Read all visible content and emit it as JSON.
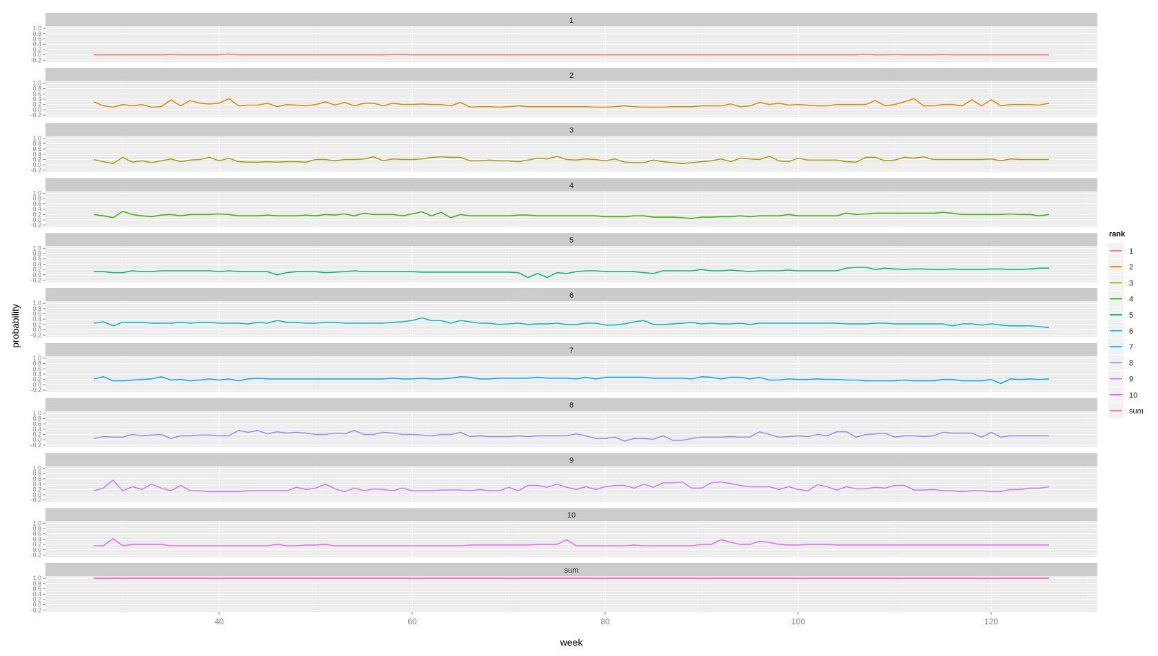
{
  "chart_data": {
    "type": "line",
    "layout": "faceted small multiples (one row per rank)",
    "xlabel": "week",
    "ylabel": "probability",
    "x_ticks": [
      40,
      60,
      80,
      100,
      120
    ],
    "xlim": [
      22,
      131
    ],
    "y_ticks": [
      "-0.2",
      "0.0",
      "0.2",
      "0.4",
      "0.6",
      "0.8",
      "1.0"
    ],
    "ylim": [
      -0.27,
      1.08
    ],
    "grid": true,
    "legend": {
      "title": "rank",
      "placement": "right",
      "entries": [
        "1",
        "2",
        "3",
        "4",
        "5",
        "6",
        "7",
        "8",
        "9",
        "10",
        "sum"
      ]
    },
    "x_start": 27,
    "x_end": 126,
    "series": [
      {
        "name": "1",
        "color": "#F8766D",
        "values": [
          0.0,
          0.0,
          0.0,
          0.0,
          0.0,
          0.0,
          0.0,
          0.0,
          0.01,
          0.0,
          0.0,
          0.0,
          0.0,
          0.0,
          0.03,
          0.0,
          0.0,
          0.0,
          0.0,
          0.0,
          0.0,
          0.0,
          0.0,
          0.0,
          0.0,
          0.0,
          0.0,
          0.0,
          0.0,
          0.0,
          0.0,
          0.01,
          0.01,
          0.0,
          0.0,
          0.0,
          0.0,
          0.0,
          0.0,
          0.0,
          0.0,
          0.0,
          0.0,
          0.0,
          0.0,
          0.0,
          0.0,
          0.0,
          0.0,
          0.0,
          0.0,
          0.0,
          0.0,
          0.0,
          0.0,
          0.0,
          0.0,
          0.0,
          0.0,
          0.0,
          0.0,
          0.0,
          0.0,
          0.0,
          0.0,
          0.0,
          0.0,
          0.0,
          0.0,
          0.0,
          0.0,
          0.0,
          0.0,
          0.0,
          0.0,
          0.0,
          0.0,
          0.0,
          0.0,
          0.0,
          0.02,
          0.0,
          0.0,
          0.01,
          0.0,
          0.0,
          0.0,
          0.0,
          0.01,
          0.0,
          0.0,
          0.0,
          0.0,
          0.0,
          0.0,
          0.0,
          0.0,
          0.0,
          0.0,
          0.0
        ]
      },
      {
        "name": "2",
        "color": "#D89000",
        "values": [
          0.3,
          0.15,
          0.1,
          0.2,
          0.15,
          0.2,
          0.1,
          0.12,
          0.38,
          0.15,
          0.35,
          0.25,
          0.22,
          0.25,
          0.42,
          0.15,
          0.18,
          0.18,
          0.25,
          0.12,
          0.2,
          0.18,
          0.15,
          0.2,
          0.3,
          0.18,
          0.28,
          0.15,
          0.25,
          0.25,
          0.15,
          0.25,
          0.2,
          0.2,
          0.22,
          0.2,
          0.2,
          0.15,
          0.28,
          0.1,
          0.12,
          0.12,
          0.1,
          0.12,
          0.15,
          0.12,
          0.12,
          0.12,
          0.12,
          0.12,
          0.12,
          0.12,
          0.1,
          0.1,
          0.12,
          0.15,
          0.12,
          0.1,
          0.1,
          0.1,
          0.12,
          0.12,
          0.12,
          0.15,
          0.15,
          0.15,
          0.22,
          0.12,
          0.15,
          0.28,
          0.2,
          0.25,
          0.18,
          0.2,
          0.18,
          0.15,
          0.15,
          0.2,
          0.2,
          0.2,
          0.2,
          0.35,
          0.15,
          0.2,
          0.3,
          0.42,
          0.15,
          0.15,
          0.2,
          0.2,
          0.15,
          0.38,
          0.15,
          0.38,
          0.15,
          0.2,
          0.2,
          0.2,
          0.18,
          0.25
        ]
      },
      {
        "name": "3",
        "color": "#A3A500",
        "values": [
          0.2,
          0.12,
          0.05,
          0.28,
          0.1,
          0.15,
          0.08,
          0.15,
          0.22,
          0.12,
          0.18,
          0.2,
          0.28,
          0.15,
          0.25,
          0.12,
          0.1,
          0.1,
          0.12,
          0.1,
          0.12,
          0.12,
          0.1,
          0.2,
          0.2,
          0.15,
          0.2,
          0.2,
          0.22,
          0.3,
          0.15,
          0.22,
          0.2,
          0.2,
          0.22,
          0.28,
          0.3,
          0.28,
          0.28,
          0.15,
          0.15,
          0.18,
          0.15,
          0.15,
          0.12,
          0.18,
          0.25,
          0.22,
          0.32,
          0.2,
          0.18,
          0.22,
          0.2,
          0.15,
          0.22,
          0.1,
          0.08,
          0.08,
          0.18,
          0.12,
          0.08,
          0.05,
          0.08,
          0.12,
          0.15,
          0.22,
          0.12,
          0.25,
          0.22,
          0.2,
          0.32,
          0.15,
          0.12,
          0.25,
          0.18,
          0.18,
          0.18,
          0.18,
          0.12,
          0.1,
          0.28,
          0.28,
          0.15,
          0.18,
          0.28,
          0.25,
          0.3,
          0.2,
          0.2,
          0.2,
          0.2,
          0.2,
          0.2,
          0.22,
          0.15,
          0.22,
          0.2,
          0.2,
          0.2,
          0.2
        ]
      },
      {
        "name": "4",
        "color": "#39B600",
        "values": [
          0.2,
          0.15,
          0.08,
          0.32,
          0.2,
          0.15,
          0.12,
          0.18,
          0.2,
          0.15,
          0.2,
          0.2,
          0.2,
          0.22,
          0.2,
          0.15,
          0.15,
          0.15,
          0.18,
          0.15,
          0.15,
          0.15,
          0.18,
          0.15,
          0.2,
          0.18,
          0.22,
          0.15,
          0.25,
          0.2,
          0.2,
          0.2,
          0.15,
          0.22,
          0.3,
          0.15,
          0.28,
          0.08,
          0.2,
          0.15,
          0.15,
          0.15,
          0.15,
          0.15,
          0.18,
          0.18,
          0.15,
          0.15,
          0.15,
          0.15,
          0.15,
          0.15,
          0.15,
          0.12,
          0.12,
          0.12,
          0.15,
          0.15,
          0.1,
          0.1,
          0.1,
          0.08,
          0.05,
          0.1,
          0.1,
          0.12,
          0.12,
          0.15,
          0.12,
          0.15,
          0.15,
          0.15,
          0.2,
          0.15,
          0.15,
          0.15,
          0.15,
          0.15,
          0.25,
          0.2,
          0.22,
          0.25,
          0.25,
          0.25,
          0.25,
          0.25,
          0.25,
          0.25,
          0.28,
          0.25,
          0.2,
          0.2,
          0.2,
          0.2,
          0.2,
          0.22,
          0.2,
          0.2,
          0.15,
          0.2
        ]
      },
      {
        "name": "5",
        "color": "#00BF7D",
        "values": [
          0.12,
          0.12,
          0.08,
          0.08,
          0.15,
          0.12,
          0.12,
          0.15,
          0.15,
          0.15,
          0.15,
          0.15,
          0.15,
          0.12,
          0.15,
          0.12,
          0.12,
          0.12,
          0.12,
          0.0,
          0.08,
          0.12,
          0.12,
          0.12,
          0.08,
          0.1,
          0.12,
          0.15,
          0.12,
          0.12,
          0.12,
          0.12,
          0.12,
          0.12,
          0.1,
          0.1,
          0.1,
          0.1,
          0.1,
          0.1,
          0.1,
          0.1,
          0.1,
          0.1,
          0.08,
          -0.1,
          0.05,
          -0.1,
          0.08,
          0.05,
          0.12,
          0.15,
          0.15,
          0.12,
          0.12,
          0.12,
          0.12,
          0.08,
          0.05,
          0.15,
          0.15,
          0.15,
          0.15,
          0.2,
          0.15,
          0.15,
          0.18,
          0.15,
          0.12,
          0.15,
          0.15,
          0.15,
          0.18,
          0.15,
          0.15,
          0.15,
          0.15,
          0.15,
          0.25,
          0.28,
          0.28,
          0.2,
          0.25,
          0.22,
          0.2,
          0.22,
          0.22,
          0.2,
          0.2,
          0.22,
          0.2,
          0.2,
          0.2,
          0.22,
          0.22,
          0.2,
          0.2,
          0.22,
          0.25,
          0.25
        ]
      },
      {
        "name": "6",
        "color": "#00BFC4",
        "values": [
          0.25,
          0.3,
          0.15,
          0.28,
          0.28,
          0.28,
          0.25,
          0.25,
          0.25,
          0.28,
          0.25,
          0.28,
          0.28,
          0.25,
          0.25,
          0.25,
          0.22,
          0.28,
          0.25,
          0.35,
          0.28,
          0.28,
          0.25,
          0.25,
          0.28,
          0.28,
          0.25,
          0.25,
          0.25,
          0.25,
          0.25,
          0.28,
          0.3,
          0.35,
          0.45,
          0.35,
          0.35,
          0.25,
          0.35,
          0.3,
          0.25,
          0.25,
          0.2,
          0.22,
          0.25,
          0.2,
          0.22,
          0.22,
          0.25,
          0.2,
          0.2,
          0.25,
          0.25,
          0.18,
          0.18,
          0.22,
          0.3,
          0.35,
          0.2,
          0.2,
          0.22,
          0.25,
          0.28,
          0.22,
          0.25,
          0.22,
          0.22,
          0.25,
          0.2,
          0.25,
          0.25,
          0.25,
          0.25,
          0.25,
          0.25,
          0.25,
          0.25,
          0.25,
          0.22,
          0.22,
          0.22,
          0.25,
          0.25,
          0.22,
          0.22,
          0.22,
          0.22,
          0.22,
          0.22,
          0.15,
          0.22,
          0.22,
          0.18,
          0.22,
          0.18,
          0.15,
          0.15,
          0.15,
          0.12,
          0.08
        ]
      },
      {
        "name": "7",
        "color": "#00B0F6",
        "values": [
          0.22,
          0.3,
          0.15,
          0.15,
          0.18,
          0.2,
          0.22,
          0.3,
          0.18,
          0.2,
          0.15,
          0.18,
          0.22,
          0.18,
          0.22,
          0.15,
          0.22,
          0.25,
          0.22,
          0.22,
          0.22,
          0.22,
          0.22,
          0.22,
          0.22,
          0.22,
          0.22,
          0.22,
          0.22,
          0.22,
          0.22,
          0.25,
          0.22,
          0.22,
          0.25,
          0.22,
          0.22,
          0.25,
          0.3,
          0.28,
          0.22,
          0.22,
          0.25,
          0.25,
          0.25,
          0.25,
          0.28,
          0.25,
          0.25,
          0.25,
          0.22,
          0.28,
          0.22,
          0.28,
          0.28,
          0.28,
          0.28,
          0.28,
          0.25,
          0.25,
          0.25,
          0.25,
          0.22,
          0.3,
          0.28,
          0.22,
          0.28,
          0.28,
          0.22,
          0.28,
          0.18,
          0.18,
          0.22,
          0.2,
          0.2,
          0.22,
          0.2,
          0.2,
          0.18,
          0.18,
          0.15,
          0.15,
          0.15,
          0.15,
          0.18,
          0.15,
          0.15,
          0.15,
          0.2,
          0.2,
          0.15,
          0.15,
          0.15,
          0.2,
          0.05,
          0.22,
          0.2,
          0.22,
          0.2,
          0.22
        ]
      },
      {
        "name": "8",
        "color": "#9590FF",
        "values": [
          0.05,
          0.12,
          0.1,
          0.1,
          0.2,
          0.15,
          0.18,
          0.2,
          0.05,
          0.15,
          0.15,
          0.18,
          0.18,
          0.15,
          0.15,
          0.35,
          0.28,
          0.35,
          0.22,
          0.3,
          0.25,
          0.28,
          0.25,
          0.2,
          0.2,
          0.25,
          0.22,
          0.35,
          0.2,
          0.2,
          0.28,
          0.25,
          0.2,
          0.2,
          0.18,
          0.15,
          0.2,
          0.2,
          0.28,
          0.12,
          0.15,
          0.12,
          0.12,
          0.12,
          0.15,
          0.12,
          0.15,
          0.15,
          0.15,
          0.15,
          0.22,
          0.15,
          0.05,
          0.05,
          0.1,
          -0.05,
          0.05,
          0.05,
          0.02,
          0.15,
          -0.02,
          -0.02,
          0.05,
          0.1,
          0.1,
          0.1,
          0.12,
          0.1,
          0.1,
          0.3,
          0.2,
          0.1,
          0.12,
          0.15,
          0.12,
          0.2,
          0.15,
          0.3,
          0.3,
          0.1,
          0.2,
          0.22,
          0.25,
          0.1,
          0.15,
          0.15,
          0.12,
          0.15,
          0.28,
          0.25,
          0.25,
          0.25,
          0.1,
          0.28,
          0.1,
          0.15,
          0.15,
          0.15,
          0.15,
          0.15
        ]
      },
      {
        "name": "10",
        "color": "#E76BF3",
        "values": [
          0.15,
          0.15,
          0.42,
          0.15,
          0.2,
          0.2,
          0.2,
          0.2,
          0.15,
          0.15,
          0.15,
          0.15,
          0.15,
          0.15,
          0.15,
          0.15,
          0.15,
          0.15,
          0.15,
          0.2,
          0.15,
          0.15,
          0.18,
          0.18,
          0.2,
          0.15,
          0.15,
          0.15,
          0.15,
          0.15,
          0.15,
          0.15,
          0.15,
          0.15,
          0.15,
          0.15,
          0.15,
          0.15,
          0.15,
          0.18,
          0.18,
          0.18,
          0.18,
          0.18,
          0.18,
          0.18,
          0.2,
          0.2,
          0.2,
          0.38,
          0.15,
          0.15,
          0.15,
          0.15,
          0.15,
          0.15,
          0.18,
          0.15,
          0.15,
          0.15,
          0.15,
          0.15,
          0.15,
          0.2,
          0.2,
          0.38,
          0.28,
          0.2,
          0.2,
          0.32,
          0.28,
          0.2,
          0.18,
          0.18,
          0.2,
          0.2,
          0.2,
          0.18,
          0.18,
          0.18,
          0.18,
          0.18,
          0.18,
          0.18,
          0.18,
          0.18,
          0.18,
          0.18,
          0.18,
          0.18,
          0.18,
          0.18,
          0.18,
          0.18,
          0.18,
          0.18,
          0.18,
          0.18,
          0.18,
          0.18
        ]
      },
      {
        "name": "sum",
        "color": "#FF62BC",
        "values": [
          1,
          1,
          1,
          1,
          1,
          1,
          1,
          1,
          1,
          1,
          1,
          1,
          1,
          1,
          1,
          1,
          1,
          1,
          1,
          1,
          1,
          1,
          1,
          1,
          1,
          1,
          1,
          1,
          1,
          1,
          1,
          1,
          1,
          1,
          1,
          1,
          1,
          1,
          1,
          1,
          1,
          1,
          1,
          1,
          1,
          1,
          1,
          1,
          1,
          1,
          1,
          1,
          1,
          1,
          1,
          1,
          1,
          1,
          1,
          1,
          1,
          1,
          1,
          1,
          1,
          1,
          1,
          1,
          1,
          1,
          1,
          1,
          1,
          1,
          1,
          1,
          1,
          1,
          1,
          1,
          1,
          1,
          1,
          1,
          1,
          1,
          1,
          1,
          1,
          1,
          1,
          1,
          1,
          1,
          1,
          1,
          1,
          1,
          1,
          1
        ]
      }
    ],
    "series_9": {
      "name": "9",
      "color": "#C77CFF",
      "values": [
        0.15,
        0.25,
        0.55,
        0.15,
        0.3,
        0.2,
        0.4,
        0.25,
        0.15,
        0.35,
        0.15,
        0.15,
        0.12,
        0.12,
        0.12,
        0.12,
        0.15,
        0.15,
        0.15,
        0.15,
        0.15,
        0.28,
        0.2,
        0.25,
        0.4,
        0.22,
        0.12,
        0.25,
        0.15,
        0.22,
        0.2,
        0.15,
        0.25,
        0.15,
        0.15,
        0.15,
        0.18,
        0.18,
        0.18,
        0.15,
        0.2,
        0.15,
        0.15,
        0.28,
        0.15,
        0.35,
        0.35,
        0.28,
        0.4,
        0.28,
        0.2,
        0.3,
        0.2,
        0.3,
        0.35,
        0.35,
        0.25,
        0.4,
        0.28,
        0.45,
        0.45,
        0.48,
        0.25,
        0.25,
        0.45,
        0.48,
        0.42,
        0.35,
        0.3,
        0.3,
        0.3,
        0.2,
        0.3,
        0.2,
        0.15,
        0.38,
        0.3,
        0.18,
        0.3,
        0.22,
        0.22,
        0.28,
        0.25,
        0.35,
        0.35,
        0.18,
        0.18,
        0.2,
        0.15,
        0.15,
        0.12,
        0.15,
        0.15,
        0.12,
        0.12,
        0.2,
        0.2,
        0.25,
        0.25,
        0.3
      ]
    },
    "panel_order": [
      "1",
      "2",
      "3",
      "4",
      "5",
      "6",
      "7",
      "8",
      "9",
      "10",
      "sum"
    ]
  }
}
